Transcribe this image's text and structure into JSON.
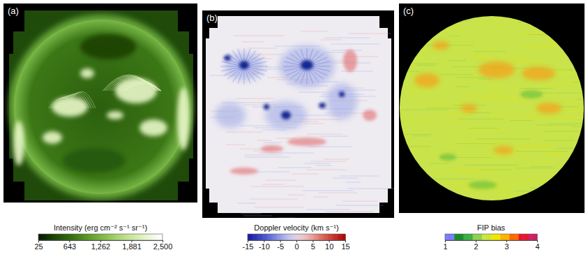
{
  "chart_data": [
    {
      "type": "image",
      "label": "(a)",
      "colorbar": {
        "title": "Intensity (erg cm⁻² s⁻¹ sr⁻¹)",
        "range": [
          25,
          2500
        ],
        "ticks": [
          25,
          643,
          {
            "value": 1262,
            "label": "1,262"
          },
          {
            "value": 1881,
            "label": "1,881"
          },
          {
            "value": 2500,
            "label": "2,500"
          }
        ]
      }
    },
    {
      "type": "image",
      "label": "(b)",
      "colorbar": {
        "title": "Doppler velocity (km s⁻¹)",
        "range": [
          -15,
          15
        ],
        "ticks": [
          -15,
          -10,
          -5,
          0,
          5,
          10,
          15
        ]
      }
    },
    {
      "type": "image",
      "label": "(c)",
      "colorbar": {
        "title": "FIP bias",
        "range": [
          1,
          4
        ],
        "ticks": [
          1,
          2,
          3,
          4
        ]
      }
    }
  ]
}
